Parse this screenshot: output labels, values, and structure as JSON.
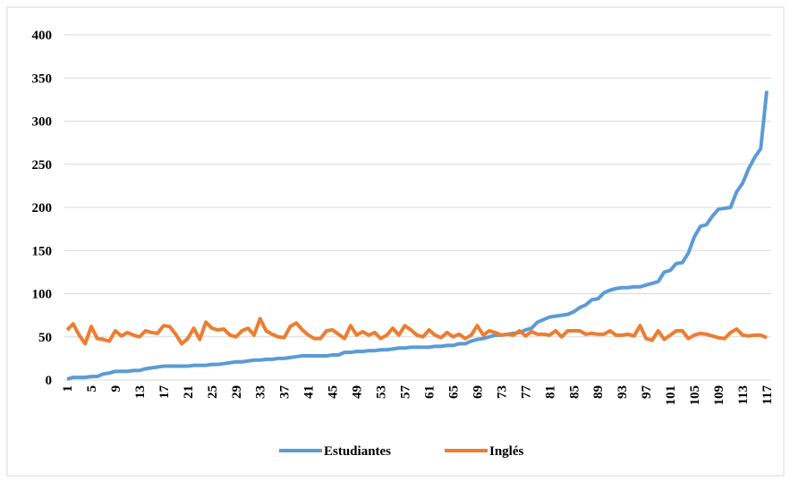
{
  "chart_data": {
    "type": "line",
    "categories": [
      "1",
      null,
      null,
      null,
      "5",
      null,
      null,
      null,
      "9",
      null,
      null,
      null,
      "13",
      null,
      null,
      null,
      "17",
      null,
      null,
      null,
      "21",
      null,
      null,
      null,
      "25",
      null,
      null,
      null,
      "29",
      null,
      null,
      null,
      "33",
      null,
      null,
      null,
      "37",
      null,
      null,
      null,
      "41",
      null,
      null,
      null,
      "45",
      null,
      null,
      null,
      "49",
      null,
      null,
      null,
      "53",
      null,
      null,
      null,
      "57",
      null,
      null,
      null,
      "61",
      null,
      null,
      null,
      "65",
      null,
      null,
      null,
      "69",
      null,
      null,
      null,
      "73",
      null,
      null,
      null,
      "77",
      null,
      null,
      null,
      "81",
      null,
      null,
      null,
      "85",
      null,
      null,
      null,
      "89",
      null,
      null,
      null,
      "93",
      null,
      null,
      null,
      "97",
      null,
      null,
      null,
      "101",
      null,
      null,
      null,
      "105",
      null,
      null,
      null,
      "109",
      null,
      null,
      null,
      "113",
      null,
      null,
      null,
      "117"
    ],
    "series": [
      {
        "name": "Estudiantes",
        "color": "#5b9bd5",
        "values": [
          1,
          3,
          3,
          3,
          4,
          4,
          7,
          8,
          10,
          10,
          10,
          11,
          11,
          13,
          14,
          15,
          16,
          16,
          16,
          16,
          16,
          17,
          17,
          17,
          18,
          18,
          19,
          20,
          21,
          21,
          22,
          23,
          23,
          24,
          24,
          25,
          25,
          26,
          27,
          28,
          28,
          28,
          28,
          28,
          29,
          29,
          32,
          32,
          33,
          33,
          34,
          34,
          35,
          35,
          36,
          37,
          37,
          38,
          38,
          38,
          38,
          39,
          39,
          40,
          40,
          42,
          42,
          45,
          47,
          48,
          50,
          52,
          52,
          53,
          54,
          55,
          58,
          60,
          67,
          70,
          73,
          74,
          75,
          76,
          79,
          84,
          87,
          93,
          94,
          101,
          104,
          106,
          107,
          107,
          108,
          108,
          110,
          112,
          114,
          125,
          127,
          135,
          136,
          147,
          166,
          178,
          180,
          190,
          198,
          199,
          200,
          218,
          228,
          245,
          258,
          268,
          335
        ]
      },
      {
        "name": "Inglés",
        "color": "#ed7d31",
        "values": [
          58,
          65,
          52,
          42,
          62,
          48,
          47,
          45,
          57,
          51,
          55,
          52,
          50,
          57,
          55,
          54,
          63,
          62,
          53,
          42,
          48,
          60,
          47,
          67,
          60,
          58,
          59,
          52,
          50,
          57,
          60,
          52,
          71,
          57,
          53,
          50,
          49,
          62,
          66,
          58,
          52,
          48,
          48,
          57,
          58,
          53,
          48,
          63,
          52,
          56,
          52,
          55,
          48,
          52,
          60,
          52,
          63,
          58,
          52,
          50,
          58,
          52,
          49,
          55,
          50,
          53,
          48,
          52,
          63,
          52,
          57,
          55,
          52,
          53,
          52,
          57,
          51,
          56,
          53,
          53,
          52,
          57,
          50,
          57,
          57,
          57,
          53,
          54,
          53,
          53,
          57,
          52,
          52,
          53,
          51,
          63,
          48,
          46,
          57,
          47,
          52,
          57,
          57,
          48,
          52,
          54,
          53,
          51,
          49,
          48,
          55,
          59,
          52,
          51,
          52,
          52,
          49
        ]
      }
    ],
    "ylim": [
      0,
      400
    ],
    "yticks": [
      0,
      50,
      100,
      150,
      200,
      250,
      300,
      350,
      400
    ],
    "grid": true,
    "legend": "bottom"
  }
}
